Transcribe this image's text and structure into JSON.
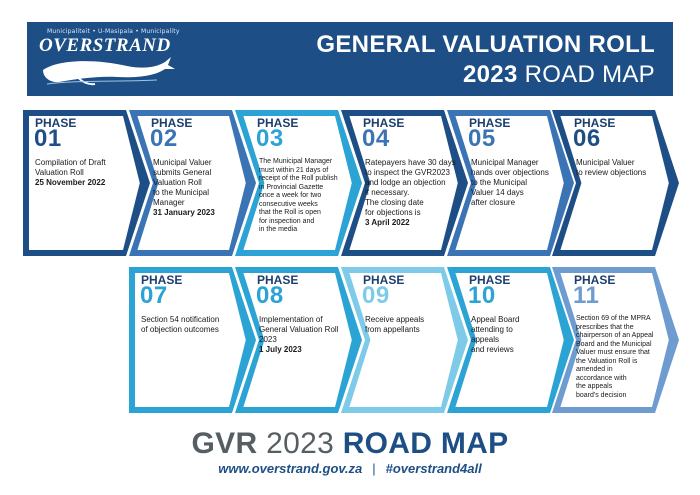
{
  "header": {
    "logo_tagline": "Municipaliteit • U-Masipala • Municipality",
    "logo_name": "OVERSTRAND",
    "title_line1": "GENERAL VALUATION ROLL",
    "title_line2_year": "2023",
    "title_line2_rest": "ROAD MAP"
  },
  "colors": {
    "header_bg": "#1d4f86",
    "dark_blue": "#1d4f86",
    "mid_blue": "#3a74b4",
    "cyan": "#2ba3d4",
    "light_cyan": "#7dcbe9",
    "periwinkle": "#6e9cd0"
  },
  "phases": [
    {
      "label": "PHASE",
      "number": "01",
      "lines": [
        {
          "text": "Compilation of Draft",
          "bold": false
        },
        {
          "text": "Valuation Roll",
          "bold": false
        },
        {
          "text": "25 November 2022",
          "bold": true
        }
      ]
    },
    {
      "label": "PHASE",
      "number": "02",
      "lines": [
        {
          "text": "Municipal Valuer",
          "bold": false
        },
        {
          "text": "submits General",
          "bold": false
        },
        {
          "text": "Valuation Roll",
          "bold": false
        },
        {
          "text": "to the Municipal",
          "bold": false
        },
        {
          "text": "Manager",
          "bold": false
        },
        {
          "text": "31 January 2023",
          "bold": true
        }
      ]
    },
    {
      "label": "PHASE",
      "number": "03",
      "lines": [
        {
          "text": "The Municipal Manager",
          "bold": false
        },
        {
          "text": "must within 21 days of",
          "bold": false
        },
        {
          "text": "receipt of the Roll publish",
          "bold": false
        },
        {
          "text": "in Provincial Gazette",
          "bold": false
        },
        {
          "text": "once a week for two",
          "bold": false
        },
        {
          "text": "consecutive weeks",
          "bold": false
        },
        {
          "text": "that the Roll is open",
          "bold": false
        },
        {
          "text": "for inspection and",
          "bold": false
        },
        {
          "text": "in the media",
          "bold": false
        }
      ]
    },
    {
      "label": "PHASE",
      "number": "04",
      "lines": [
        {
          "text": "Ratepayers have 30 days",
          "bold": false
        },
        {
          "text": "to inspect the GVR2023",
          "bold": false
        },
        {
          "text": "and lodge an objection",
          "bold": false
        },
        {
          "text": "if necessary.",
          "bold": false
        },
        {
          "text": "The closing date",
          "bold": false
        },
        {
          "text": "for objections is",
          "bold": false
        },
        {
          "text": "3 April 2022",
          "bold": true
        }
      ]
    },
    {
      "label": "PHASE",
      "number": "05",
      "lines": [
        {
          "text": "Municipal Manager",
          "bold": false
        },
        {
          "text": "hands over objections",
          "bold": false
        },
        {
          "text": "to the Municipal",
          "bold": false
        },
        {
          "text": "Valuer 14 days",
          "bold": false
        },
        {
          "text": "after closure",
          "bold": false
        }
      ]
    },
    {
      "label": "PHASE",
      "number": "06",
      "lines": [
        {
          "text": "Municipal Valuer",
          "bold": false
        },
        {
          "text": "to review objections",
          "bold": false
        }
      ]
    },
    {
      "label": "PHASE",
      "number": "07",
      "lines": [
        {
          "text": "Section 54 notification",
          "bold": false
        },
        {
          "text": "of objection outcomes",
          "bold": false
        }
      ]
    },
    {
      "label": "PHASE",
      "number": "08",
      "lines": [
        {
          "text": "Implementation of",
          "bold": false
        },
        {
          "text": "General Valuation Roll",
          "bold": false
        },
        {
          "text": "2023",
          "bold": false
        },
        {
          "text": "1 July 2023",
          "bold": true
        }
      ]
    },
    {
      "label": "PHASE",
      "number": "09",
      "lines": [
        {
          "text": "Receive appeals",
          "bold": false
        },
        {
          "text": "from appellants",
          "bold": false
        }
      ]
    },
    {
      "label": "PHASE",
      "number": "10",
      "lines": [
        {
          "text": "Appeal Board",
          "bold": false
        },
        {
          "text": "attending to",
          "bold": false
        },
        {
          "text": "appeals",
          "bold": false
        },
        {
          "text": "and reviews",
          "bold": false
        }
      ]
    },
    {
      "label": "PHASE",
      "number": "11",
      "lines": [
        {
          "text": "Section 69 of the MPRA",
          "bold": false
        },
        {
          "text": "prescribes that the",
          "bold": false
        },
        {
          "text": "chairperson of an Appeal",
          "bold": false
        },
        {
          "text": "Board and the Municipal",
          "bold": false
        },
        {
          "text": "Valuer must ensure that",
          "bold": false
        },
        {
          "text": "the Valuation Roll is",
          "bold": false
        },
        {
          "text": "amended in",
          "bold": false
        },
        {
          "text": "accordance with",
          "bold": false
        },
        {
          "text": "the appeals",
          "bold": false
        },
        {
          "text": "board's decision",
          "bold": false
        }
      ]
    }
  ],
  "footer": {
    "title_gvr": "GVR",
    "title_year": "2023",
    "title_roadmap": "ROAD MAP",
    "website": "www.overstrand.gov.za",
    "separator": "|",
    "hashtag": "#overstrand4all"
  }
}
